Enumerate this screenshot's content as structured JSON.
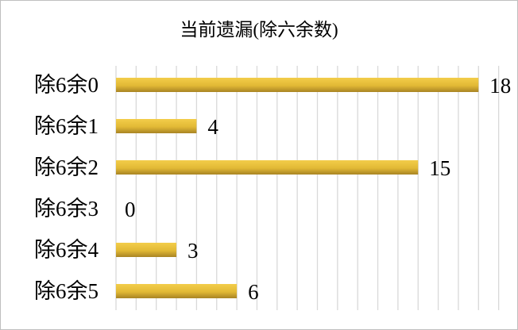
{
  "chart_data": {
    "type": "bar",
    "orientation": "horizontal",
    "title": "当前遗漏(除六余数)",
    "categories": [
      "除6余0",
      "除6余1",
      "除6余2",
      "除6余3",
      "除6余4",
      "除6余5"
    ],
    "values": [
      18,
      4,
      15,
      0,
      3,
      6
    ],
    "data_labels": [
      "18",
      "4",
      "15",
      "0",
      "3",
      "6"
    ],
    "xlim": [
      0,
      19
    ],
    "grid": "vertical, every 1",
    "legend": "none",
    "colors": {
      "bar_top": "#f3cd4a",
      "bar_bottom": "#a88424",
      "grid": "#d9d9d9"
    }
  }
}
